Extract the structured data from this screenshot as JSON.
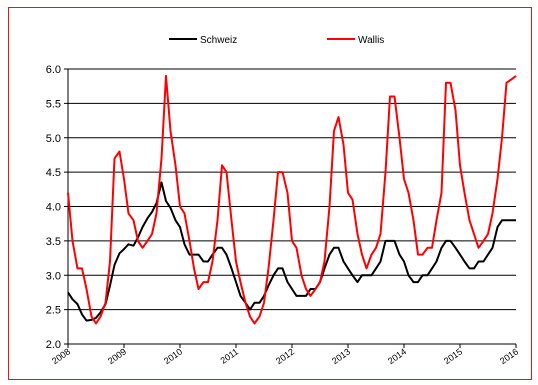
{
  "chart_data": {
    "type": "line",
    "title": "",
    "xlabel": "",
    "ylabel": "",
    "ylim": [
      2.0,
      6.0
    ],
    "yticks": [
      "2.0",
      "2.5",
      "3.0",
      "3.5",
      "4.0",
      "4.5",
      "5.0",
      "5.5",
      "6.0"
    ],
    "xlim": [
      2008,
      2016
    ],
    "xticks": [
      "2008",
      "2009",
      "2010",
      "2011",
      "2012",
      "2013",
      "2014",
      "2015",
      "2016"
    ],
    "grid": "horizontal",
    "legend": "top",
    "series": [
      {
        "name": "Schweiz",
        "color": "#000000",
        "x": [
          2008.0,
          2008.08,
          2008.17,
          2008.25,
          2008.33,
          2008.42,
          2008.5,
          2008.58,
          2008.67,
          2008.75,
          2008.83,
          2008.92,
          2009.0,
          2009.08,
          2009.17,
          2009.25,
          2009.33,
          2009.42,
          2009.5,
          2009.58,
          2009.67,
          2009.75,
          2009.83,
          2009.92,
          2010.0,
          2010.08,
          2010.17,
          2010.25,
          2010.33,
          2010.42,
          2010.5,
          2010.58,
          2010.67,
          2010.75,
          2010.83,
          2010.92,
          2011.0,
          2011.08,
          2011.17,
          2011.25,
          2011.33,
          2011.42,
          2011.5,
          2011.58,
          2011.67,
          2011.75,
          2011.83,
          2011.92,
          2012.0,
          2012.08,
          2012.17,
          2012.25,
          2012.33,
          2012.42,
          2012.5,
          2012.58,
          2012.67,
          2012.75,
          2012.83,
          2012.92,
          2013.0,
          2013.08,
          2013.17,
          2013.25,
          2013.33,
          2013.42,
          2013.5,
          2013.58,
          2013.67,
          2013.75,
          2013.83,
          2013.92,
          2014.0,
          2014.08,
          2014.17,
          2014.25,
          2014.33,
          2014.42,
          2014.5,
          2014.58,
          2014.67,
          2014.75,
          2014.83,
          2014.92,
          2015.0,
          2015.08,
          2015.17,
          2015.25,
          2015.33,
          2015.42,
          2015.5,
          2015.58,
          2015.67,
          2015.75,
          2015.83,
          2015.92,
          2016.0
        ],
        "values": [
          2.75,
          2.65,
          2.58,
          2.43,
          2.34,
          2.35,
          2.38,
          2.46,
          2.58,
          2.85,
          3.15,
          3.32,
          3.38,
          3.45,
          3.43,
          3.55,
          3.7,
          3.83,
          3.92,
          4.05,
          4.35,
          4.08,
          3.98,
          3.8,
          3.7,
          3.45,
          3.3,
          3.3,
          3.3,
          3.2,
          3.2,
          3.3,
          3.4,
          3.4,
          3.3,
          3.1,
          2.9,
          2.7,
          2.6,
          2.5,
          2.6,
          2.6,
          2.7,
          2.85,
          3.0,
          3.1,
          3.1,
          2.9,
          2.8,
          2.7,
          2.7,
          2.7,
          2.8,
          2.8,
          2.9,
          3.1,
          3.3,
          3.4,
          3.4,
          3.2,
          3.1,
          3.0,
          2.9,
          3.0,
          3.0,
          3.0,
          3.1,
          3.2,
          3.5,
          3.5,
          3.5,
          3.3,
          3.2,
          3.0,
          2.9,
          2.9,
          3.0,
          3.0,
          3.1,
          3.2,
          3.4,
          3.5,
          3.5,
          3.4,
          3.3,
          3.2,
          3.1,
          3.1,
          3.2,
          3.2,
          3.3,
          3.4,
          3.7,
          3.8,
          3.8,
          3.8,
          3.8
        ]
      },
      {
        "name": "Wallis",
        "color": "#ff0000",
        "x": [
          2008.0,
          2008.08,
          2008.17,
          2008.25,
          2008.33,
          2008.42,
          2008.5,
          2008.58,
          2008.67,
          2008.75,
          2008.83,
          2008.92,
          2009.0,
          2009.08,
          2009.17,
          2009.25,
          2009.33,
          2009.42,
          2009.5,
          2009.58,
          2009.67,
          2009.75,
          2009.83,
          2009.92,
          2010.0,
          2010.08,
          2010.17,
          2010.25,
          2010.33,
          2010.42,
          2010.5,
          2010.58,
          2010.67,
          2010.75,
          2010.83,
          2010.92,
          2011.0,
          2011.08,
          2011.17,
          2011.25,
          2011.33,
          2011.42,
          2011.5,
          2011.58,
          2011.67,
          2011.75,
          2011.83,
          2011.92,
          2012.0,
          2012.08,
          2012.17,
          2012.25,
          2012.33,
          2012.42,
          2012.5,
          2012.58,
          2012.67,
          2012.75,
          2012.83,
          2012.92,
          2013.0,
          2013.08,
          2013.17,
          2013.25,
          2013.33,
          2013.42,
          2013.5,
          2013.58,
          2013.67,
          2013.75,
          2013.83,
          2013.92,
          2014.0,
          2014.08,
          2014.17,
          2014.25,
          2014.33,
          2014.42,
          2014.5,
          2014.58,
          2014.67,
          2014.75,
          2014.83,
          2014.92,
          2015.0,
          2015.08,
          2015.17,
          2015.25,
          2015.33,
          2015.42,
          2015.5,
          2015.58,
          2015.67,
          2015.75,
          2015.83,
          2015.92,
          2016.0
        ],
        "values": [
          4.2,
          3.5,
          3.1,
          3.1,
          2.8,
          2.4,
          2.3,
          2.4,
          2.6,
          3.2,
          4.7,
          4.8,
          4.4,
          3.9,
          3.8,
          3.5,
          3.4,
          3.5,
          3.6,
          3.9,
          4.7,
          5.9,
          5.1,
          4.6,
          4.0,
          3.9,
          3.5,
          3.1,
          2.8,
          2.9,
          2.9,
          3.2,
          3.8,
          4.6,
          4.5,
          3.8,
          3.2,
          2.9,
          2.6,
          2.4,
          2.3,
          2.4,
          2.6,
          3.1,
          3.8,
          4.5,
          4.5,
          4.2,
          3.5,
          3.4,
          3.0,
          2.8,
          2.7,
          2.8,
          2.9,
          3.2,
          4.0,
          5.1,
          5.3,
          4.9,
          4.2,
          4.1,
          3.6,
          3.3,
          3.1,
          3.3,
          3.4,
          3.6,
          4.5,
          5.6,
          5.6,
          5.0,
          4.4,
          4.2,
          3.8,
          3.3,
          3.3,
          3.4,
          3.4,
          3.8,
          4.2,
          5.8,
          5.8,
          5.4,
          4.6,
          4.2,
          3.8,
          3.6,
          3.4,
          3.5,
          3.6,
          3.9,
          4.4,
          5.0,
          5.8,
          5.85,
          5.9
        ]
      }
    ]
  }
}
